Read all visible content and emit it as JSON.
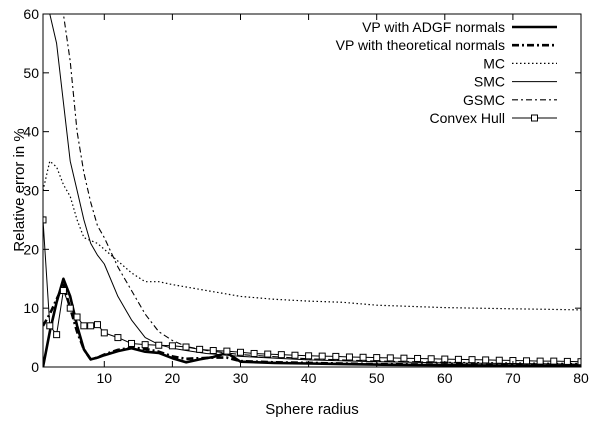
{
  "chart_data": {
    "type": "line",
    "xlabel": "Sphere radius",
    "ylabel": "Relative error in %",
    "xlim": [
      1,
      80
    ],
    "ylim": [
      0,
      60
    ],
    "xticks": [
      10,
      20,
      30,
      40,
      50,
      60,
      70,
      80
    ],
    "yticks": [
      0,
      10,
      20,
      30,
      40,
      50,
      60
    ],
    "grid": false,
    "legend_position": "top-right",
    "series": [
      {
        "name": "VP with ADGF normals",
        "style": "thick-solid",
        "x": [
          1,
          2,
          3,
          4,
          5,
          6,
          7,
          8,
          9,
          10,
          12,
          14,
          16,
          18,
          20,
          22,
          24,
          26,
          28,
          30,
          35,
          40,
          45,
          50,
          55,
          60,
          65,
          70,
          75,
          80
        ],
        "y": [
          0,
          6,
          11,
          15,
          12,
          7,
          3,
          1.3,
          1.6,
          2.0,
          2.7,
          3.2,
          2.6,
          2.4,
          1.5,
          0.8,
          1.3,
          1.7,
          2.4,
          0.9,
          0.7,
          0.6,
          0.5,
          0.4,
          0.35,
          0.3,
          0.28,
          0.25,
          0.22,
          0.2
        ]
      },
      {
        "name": "VP with theoretical normals",
        "style": "thick-dashdot",
        "x": [
          1,
          2,
          3,
          4,
          5,
          6,
          7,
          8,
          9,
          10,
          12,
          14,
          16,
          18,
          20,
          22,
          24,
          26,
          28,
          30,
          35,
          40,
          45,
          50,
          55,
          60,
          65,
          70,
          75,
          80
        ],
        "y": [
          7,
          9,
          11.5,
          14,
          10,
          6,
          3,
          1.3,
          1.6,
          2.1,
          2.9,
          3.3,
          3.1,
          2.6,
          1.8,
          1.4,
          1.5,
          1.6,
          1.6,
          1.0,
          0.8,
          0.7,
          0.6,
          0.5,
          0.45,
          0.4,
          0.35,
          0.3,
          0.28,
          0.25
        ]
      },
      {
        "name": "MC",
        "style": "dotted",
        "x": [
          1,
          2,
          3,
          4,
          5,
          6,
          7,
          8,
          9,
          10,
          12,
          14,
          16,
          18,
          20,
          25,
          30,
          35,
          40,
          45,
          50,
          55,
          60,
          65,
          70,
          75,
          80
        ],
        "y": [
          30,
          35,
          34,
          31,
          29,
          25,
          22,
          21.5,
          21,
          20,
          18,
          16,
          14.5,
          14.5,
          14,
          13,
          12,
          11.5,
          11.2,
          11,
          10.5,
          10.3,
          10.1,
          10,
          9.9,
          9.8,
          9.7
        ]
      },
      {
        "name": "SMC",
        "style": "thin-solid",
        "x": [
          1,
          2,
          3,
          4,
          5,
          6,
          7,
          8,
          9,
          10,
          12,
          14,
          16,
          18,
          20,
          22,
          25,
          30,
          40,
          50,
          60,
          70,
          80
        ],
        "y": [
          60,
          60,
          55,
          45,
          35,
          30,
          25,
          21,
          19,
          17.5,
          12,
          8,
          5,
          3.8,
          3.2,
          2.8,
          2.3,
          1.8,
          1.2,
          0.9,
          0.7,
          0.6,
          0.5
        ]
      },
      {
        "name": "GSMC",
        "style": "thin-dashdot",
        "x": [
          1,
          2,
          3,
          4,
          5,
          6,
          7,
          8,
          9,
          10,
          12,
          14,
          16,
          18,
          20,
          22,
          25,
          30,
          40,
          50,
          60,
          70,
          80
        ],
        "y": [
          60,
          60,
          60,
          60,
          52,
          40,
          33,
          28,
          24,
          22,
          17,
          13,
          9,
          6,
          4.5,
          3.5,
          2.8,
          2.1,
          1.4,
          1.0,
          0.8,
          0.7,
          0.6
        ]
      },
      {
        "name": "Convex Hull",
        "style": "square-markers",
        "x": [
          1,
          2,
          3,
          4,
          5,
          6,
          7,
          8,
          9,
          10,
          12,
          14,
          16,
          18,
          20,
          22,
          24,
          26,
          28,
          30,
          32,
          34,
          36,
          38,
          40,
          42,
          44,
          46,
          48,
          50,
          52,
          54,
          56,
          58,
          60,
          62,
          64,
          66,
          68,
          70,
          72,
          74,
          76,
          78,
          80
        ],
        "y": [
          25,
          7,
          5.5,
          13,
          10,
          8.5,
          7,
          7,
          7.2,
          5.8,
          5,
          4,
          3.8,
          3.7,
          3.6,
          3.4,
          3.0,
          2.8,
          2.7,
          2.5,
          2.3,
          2.2,
          2.1,
          2.0,
          1.9,
          1.85,
          1.8,
          1.7,
          1.65,
          1.6,
          1.55,
          1.5,
          1.45,
          1.4,
          1.35,
          1.3,
          1.25,
          1.2,
          1.15,
          1.1,
          1.05,
          1.0,
          1.0,
          0.95,
          0.9
        ]
      }
    ]
  }
}
